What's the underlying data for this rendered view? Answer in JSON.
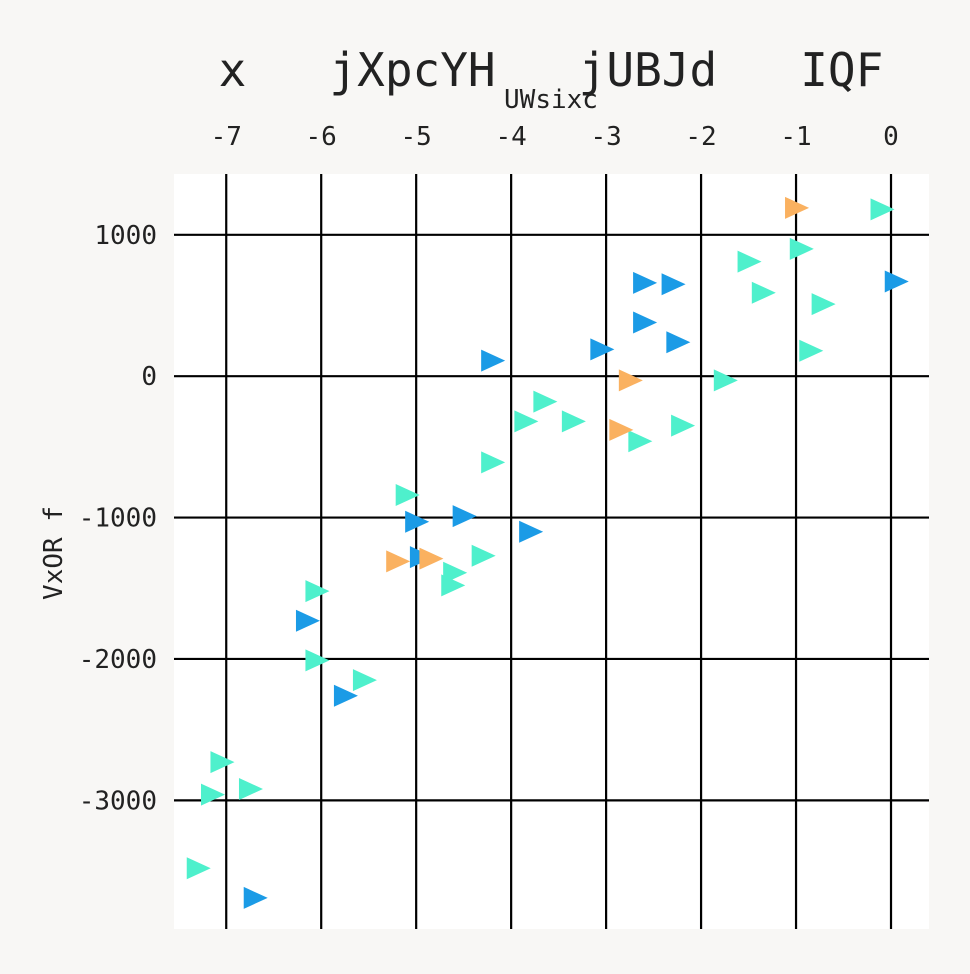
{
  "chart_data": {
    "type": "scatter",
    "title": "x jXpcYH jUBJd IQF",
    "xlabel": "UWsixc",
    "ylabel": "VxOR f",
    "xlim": [
      -7.55,
      0.4
    ],
    "ylim": [
      -3910,
      1430
    ],
    "x_axis_position": "top",
    "x_ticks": [
      -7,
      -6,
      -5,
      -4,
      -3,
      -2,
      -1,
      0
    ],
    "y_ticks": [
      1000,
      0,
      -1000,
      -2000,
      -3000
    ],
    "grid": true,
    "marker": "triangle-right",
    "series": [
      {
        "color": "#4ef0cc",
        "points": [
          [
            -0.1,
            1180
          ],
          [
            -0.95,
            900
          ],
          [
            -1.5,
            810
          ],
          [
            -1.35,
            590
          ],
          [
            -0.72,
            510
          ],
          [
            -0.85,
            180
          ],
          [
            -1.75,
            -30
          ],
          [
            -2.2,
            -350
          ],
          [
            -2.65,
            -460
          ],
          [
            -3.65,
            -180
          ],
          [
            -3.35,
            -320
          ],
          [
            -3.85,
            -320
          ],
          [
            -4.2,
            -610
          ],
          [
            -5.1,
            -840
          ],
          [
            -4.3,
            -1270
          ],
          [
            -4.6,
            -1390
          ],
          [
            -4.62,
            -1480
          ],
          [
            -6.05,
            -1520
          ],
          [
            -6.05,
            -2010
          ],
          [
            -5.55,
            -2150
          ],
          [
            -7.05,
            -2730
          ],
          [
            -7.15,
            -2960
          ],
          [
            -6.75,
            -2920
          ],
          [
            -7.3,
            -3480
          ]
        ]
      },
      {
        "color": "#1b9be6",
        "points": [
          [
            0.05,
            670
          ],
          [
            -2.6,
            660
          ],
          [
            -2.3,
            650
          ],
          [
            -2.6,
            380
          ],
          [
            -2.25,
            240
          ],
          [
            -3.05,
            190
          ],
          [
            -4.2,
            110
          ],
          [
            -4.5,
            -990
          ],
          [
            -5.0,
            -1030
          ],
          [
            -3.8,
            -1100
          ],
          [
            -4.95,
            -1280
          ],
          [
            -6.15,
            -1730
          ],
          [
            -5.75,
            -2260
          ],
          [
            -6.7,
            -3690
          ]
        ]
      },
      {
        "color": "#fab160",
        "points": [
          [
            -1.0,
            1190
          ],
          [
            -2.75,
            -30
          ],
          [
            -2.85,
            -380
          ],
          [
            -5.2,
            -1310
          ],
          [
            -4.85,
            -1290
          ]
        ]
      }
    ]
  }
}
